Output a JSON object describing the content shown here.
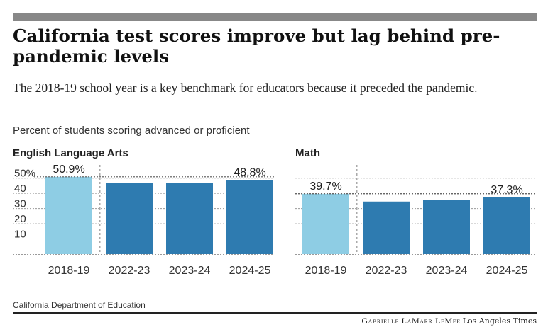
{
  "header": {
    "title": "California test scores improve but lag behind pre-pandemic levels",
    "subtitle": "The 2018-19 school year is a key benchmark for educators because it preceded the pandemic."
  },
  "y_axis_caption": "Percent of students scoring advanced or proficient",
  "footer": {
    "source": "California Department of Education",
    "byline": "Gabrielle LaMarr LeMee",
    "organization": "Los Angeles Times"
  },
  "colors": {
    "benchmark_bar": "#8ecde4",
    "bar": "#2e7bb0",
    "grid": "#9a9a9a",
    "top_bar": "#888888"
  },
  "chart_data": [
    {
      "type": "bar",
      "title": "English Language Arts",
      "categories": [
        "2018-19",
        "2022-23",
        "2023-24",
        "2024-25"
      ],
      "values": [
        50.9,
        46.7,
        47.0,
        48.8
      ],
      "data_labels": [
        "50.9%",
        "",
        "",
        "48.8%"
      ],
      "ylim": [
        0,
        55
      ],
      "yticks": [
        10,
        20,
        30,
        40,
        50
      ],
      "ytick_labels": [
        "10",
        "20",
        "30",
        "40",
        "50%"
      ],
      "reference_line": 50.9,
      "divider_after_category": "2018-19",
      "grid": true
    },
    {
      "type": "bar",
      "title": "Math",
      "categories": [
        "2018-19",
        "2022-23",
        "2023-24",
        "2024-25"
      ],
      "values": [
        39.7,
        34.6,
        35.5,
        37.3
      ],
      "data_labels": [
        "39.7%",
        "",
        "",
        "37.3%"
      ],
      "ylim": [
        0,
        55
      ],
      "yticks": [
        10,
        20,
        30,
        40,
        50
      ],
      "ytick_labels": [],
      "reference_line": 39.7,
      "divider_after_category": "2018-19",
      "grid": true
    }
  ]
}
